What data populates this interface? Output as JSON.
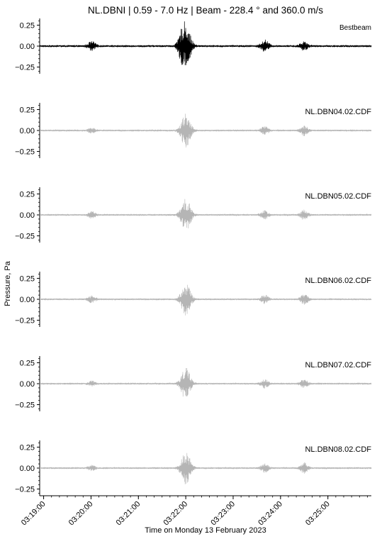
{
  "chart_data": {
    "type": "line",
    "title": "NL.DBNI | 0.59 - 7.0 Hz | Beam - 228.4 °  and 360.0 m/s",
    "xlabel": "Time on Monday 13 February 2023",
    "ylabel": "Pressure, Pa",
    "x_tick_labels": [
      "03:19:00",
      "03:20:00",
      "03:21:00",
      "03:22:00",
      "03:23:00",
      "03:24:00",
      "03:25:00"
    ],
    "xlim": [
      "03:18:55",
      "03:25:55"
    ],
    "ylim": [
      -0.33,
      0.33
    ],
    "y_ticks": [
      0.25,
      0.0,
      -0.25
    ],
    "y_tick_labels": [
      "0.25",
      "0.00",
      "−0.25"
    ],
    "grid": false,
    "series": [
      {
        "name": "Bestbeam",
        "color": "#000000",
        "events": [
          {
            "time": "03:20:01",
            "amplitude": 0.05
          },
          {
            "time": "03:21:55",
            "amplitude": 0.08
          },
          {
            "time": "03:22:00",
            "amplitude": 0.24
          },
          {
            "time": "03:23:40",
            "amplitude": 0.07
          },
          {
            "time": "03:24:30",
            "amplitude": 0.05
          }
        ]
      },
      {
        "name": "NL.DBN04.02.CDF",
        "color": "#b5b5b5",
        "events": [
          {
            "time": "03:20:01",
            "amplitude": 0.03
          },
          {
            "time": "03:22:00",
            "amplitude": 0.2
          },
          {
            "time": "03:23:40",
            "amplitude": 0.05
          },
          {
            "time": "03:24:30",
            "amplitude": 0.06
          }
        ]
      },
      {
        "name": "NL.DBN05.02.CDF",
        "color": "#b5b5b5",
        "events": [
          {
            "time": "03:20:01",
            "amplitude": 0.04
          },
          {
            "time": "03:22:00",
            "amplitude": 0.2
          },
          {
            "time": "03:23:40",
            "amplitude": 0.05
          },
          {
            "time": "03:24:30",
            "amplitude": 0.06
          }
        ]
      },
      {
        "name": "NL.DBN06.02.CDF",
        "color": "#b5b5b5",
        "events": [
          {
            "time": "03:20:01",
            "amplitude": 0.04
          },
          {
            "time": "03:22:00",
            "amplitude": 0.19
          },
          {
            "time": "03:23:40",
            "amplitude": 0.05
          },
          {
            "time": "03:24:30",
            "amplitude": 0.06
          }
        ]
      },
      {
        "name": "NL.DBN07.02.CDF",
        "color": "#b5b5b5",
        "events": [
          {
            "time": "03:20:01",
            "amplitude": 0.03
          },
          {
            "time": "03:22:00",
            "amplitude": 0.19
          },
          {
            "time": "03:23:40",
            "amplitude": 0.05
          },
          {
            "time": "03:24:30",
            "amplitude": 0.05
          }
        ]
      },
      {
        "name": "NL.DBN08.02.CDF",
        "color": "#b5b5b5",
        "events": [
          {
            "time": "03:20:01",
            "amplitude": 0.03
          },
          {
            "time": "03:22:00",
            "amplitude": 0.19
          },
          {
            "time": "03:23:40",
            "amplitude": 0.05
          },
          {
            "time": "03:24:30",
            "amplitude": 0.06
          }
        ]
      }
    ]
  }
}
